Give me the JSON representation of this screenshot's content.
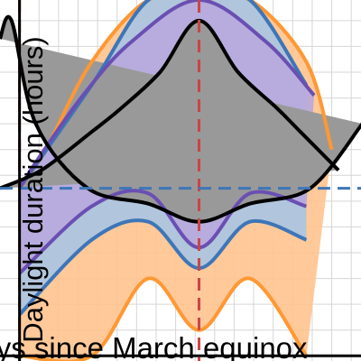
{
  "chart_data": {
    "type": "area",
    "xlabel": "Days since March equinox",
    "ylabel": "Daylight duration (hours)",
    "xlim": [
      -10,
      175
    ],
    "ylim": [
      10.8,
      24.8
    ],
    "grid": true,
    "reference_lines": {
      "vertical_dashed_x": [
        0,
        92
      ],
      "horizontal_dashed_y": 17.5
    },
    "series": [
      {
        "role": "dark-grey-fill-black-outline",
        "color": "#000000",
        "fill": "#999999",
        "x": [
          -10,
          -4.1,
          8.3,
          35,
          66,
          92,
          118,
          149,
          175.7
        ],
        "y": [
          23.3,
          24.0,
          20.0,
          17.5,
          16.9,
          16.2,
          16.9,
          17.5,
          20.0
        ],
        "x2": [
          -10,
          11.2,
          37.2,
          52,
          72,
          92,
          112,
          132,
          143.8,
          163.5
        ],
        "y2": [
          17.5,
          18.2,
          19.7,
          20.6,
          22.0,
          24.0,
          22.0,
          20.6,
          19.7,
          18.2
        ]
      },
      {
        "role": "purple",
        "color": "#6a4fb3",
        "fill": "#b8a9dd",
        "lower": {
          "x": [
            0,
            37,
            66,
            92,
            118,
            147
          ],
          "y": [
            14.2,
            16.8,
            17.3,
            15.2,
            17.3,
            16.8
          ]
        },
        "upper": {
          "x": [
            0,
            8.3,
            32.5,
            57.7,
            92,
            126,
            151
          ],
          "y": [
            17.5,
            18.5,
            21.1,
            23.2,
            24.8,
            23.2,
            21.1
          ]
        }
      },
      {
        "role": "blue",
        "color": "#3d76b8",
        "fill": "#a8c4e3",
        "lower": {
          "x": [
            0,
            37,
            66,
            92,
            118,
            147
          ],
          "y": [
            12.6,
            15.5,
            16.2,
            14.4,
            16.2,
            15.5
          ]
        },
        "upper": {
          "x": [
            0,
            37,
            66,
            92,
            118,
            147
          ],
          "y": [
            17.5,
            21.5,
            24.8,
            24.8,
            24.8,
            21.5
          ]
        }
      },
      {
        "role": "orange",
        "color": "#ff9833",
        "fill": "#ffc38f",
        "lower": {
          "x": [
            0,
            37,
            66,
            92,
            118,
            147
          ],
          "y": [
            11.0,
            11.0,
            14.0,
            12.0,
            14.0,
            11.0
          ]
        },
        "upper": {
          "x": [
            0,
            13.5,
            37,
            66,
            92,
            118,
            147,
            160
          ],
          "y": [
            17.5,
            19.0,
            22.4,
            24.8,
            24.8,
            24.8,
            22.4,
            19.0
          ]
        }
      }
    ]
  }
}
